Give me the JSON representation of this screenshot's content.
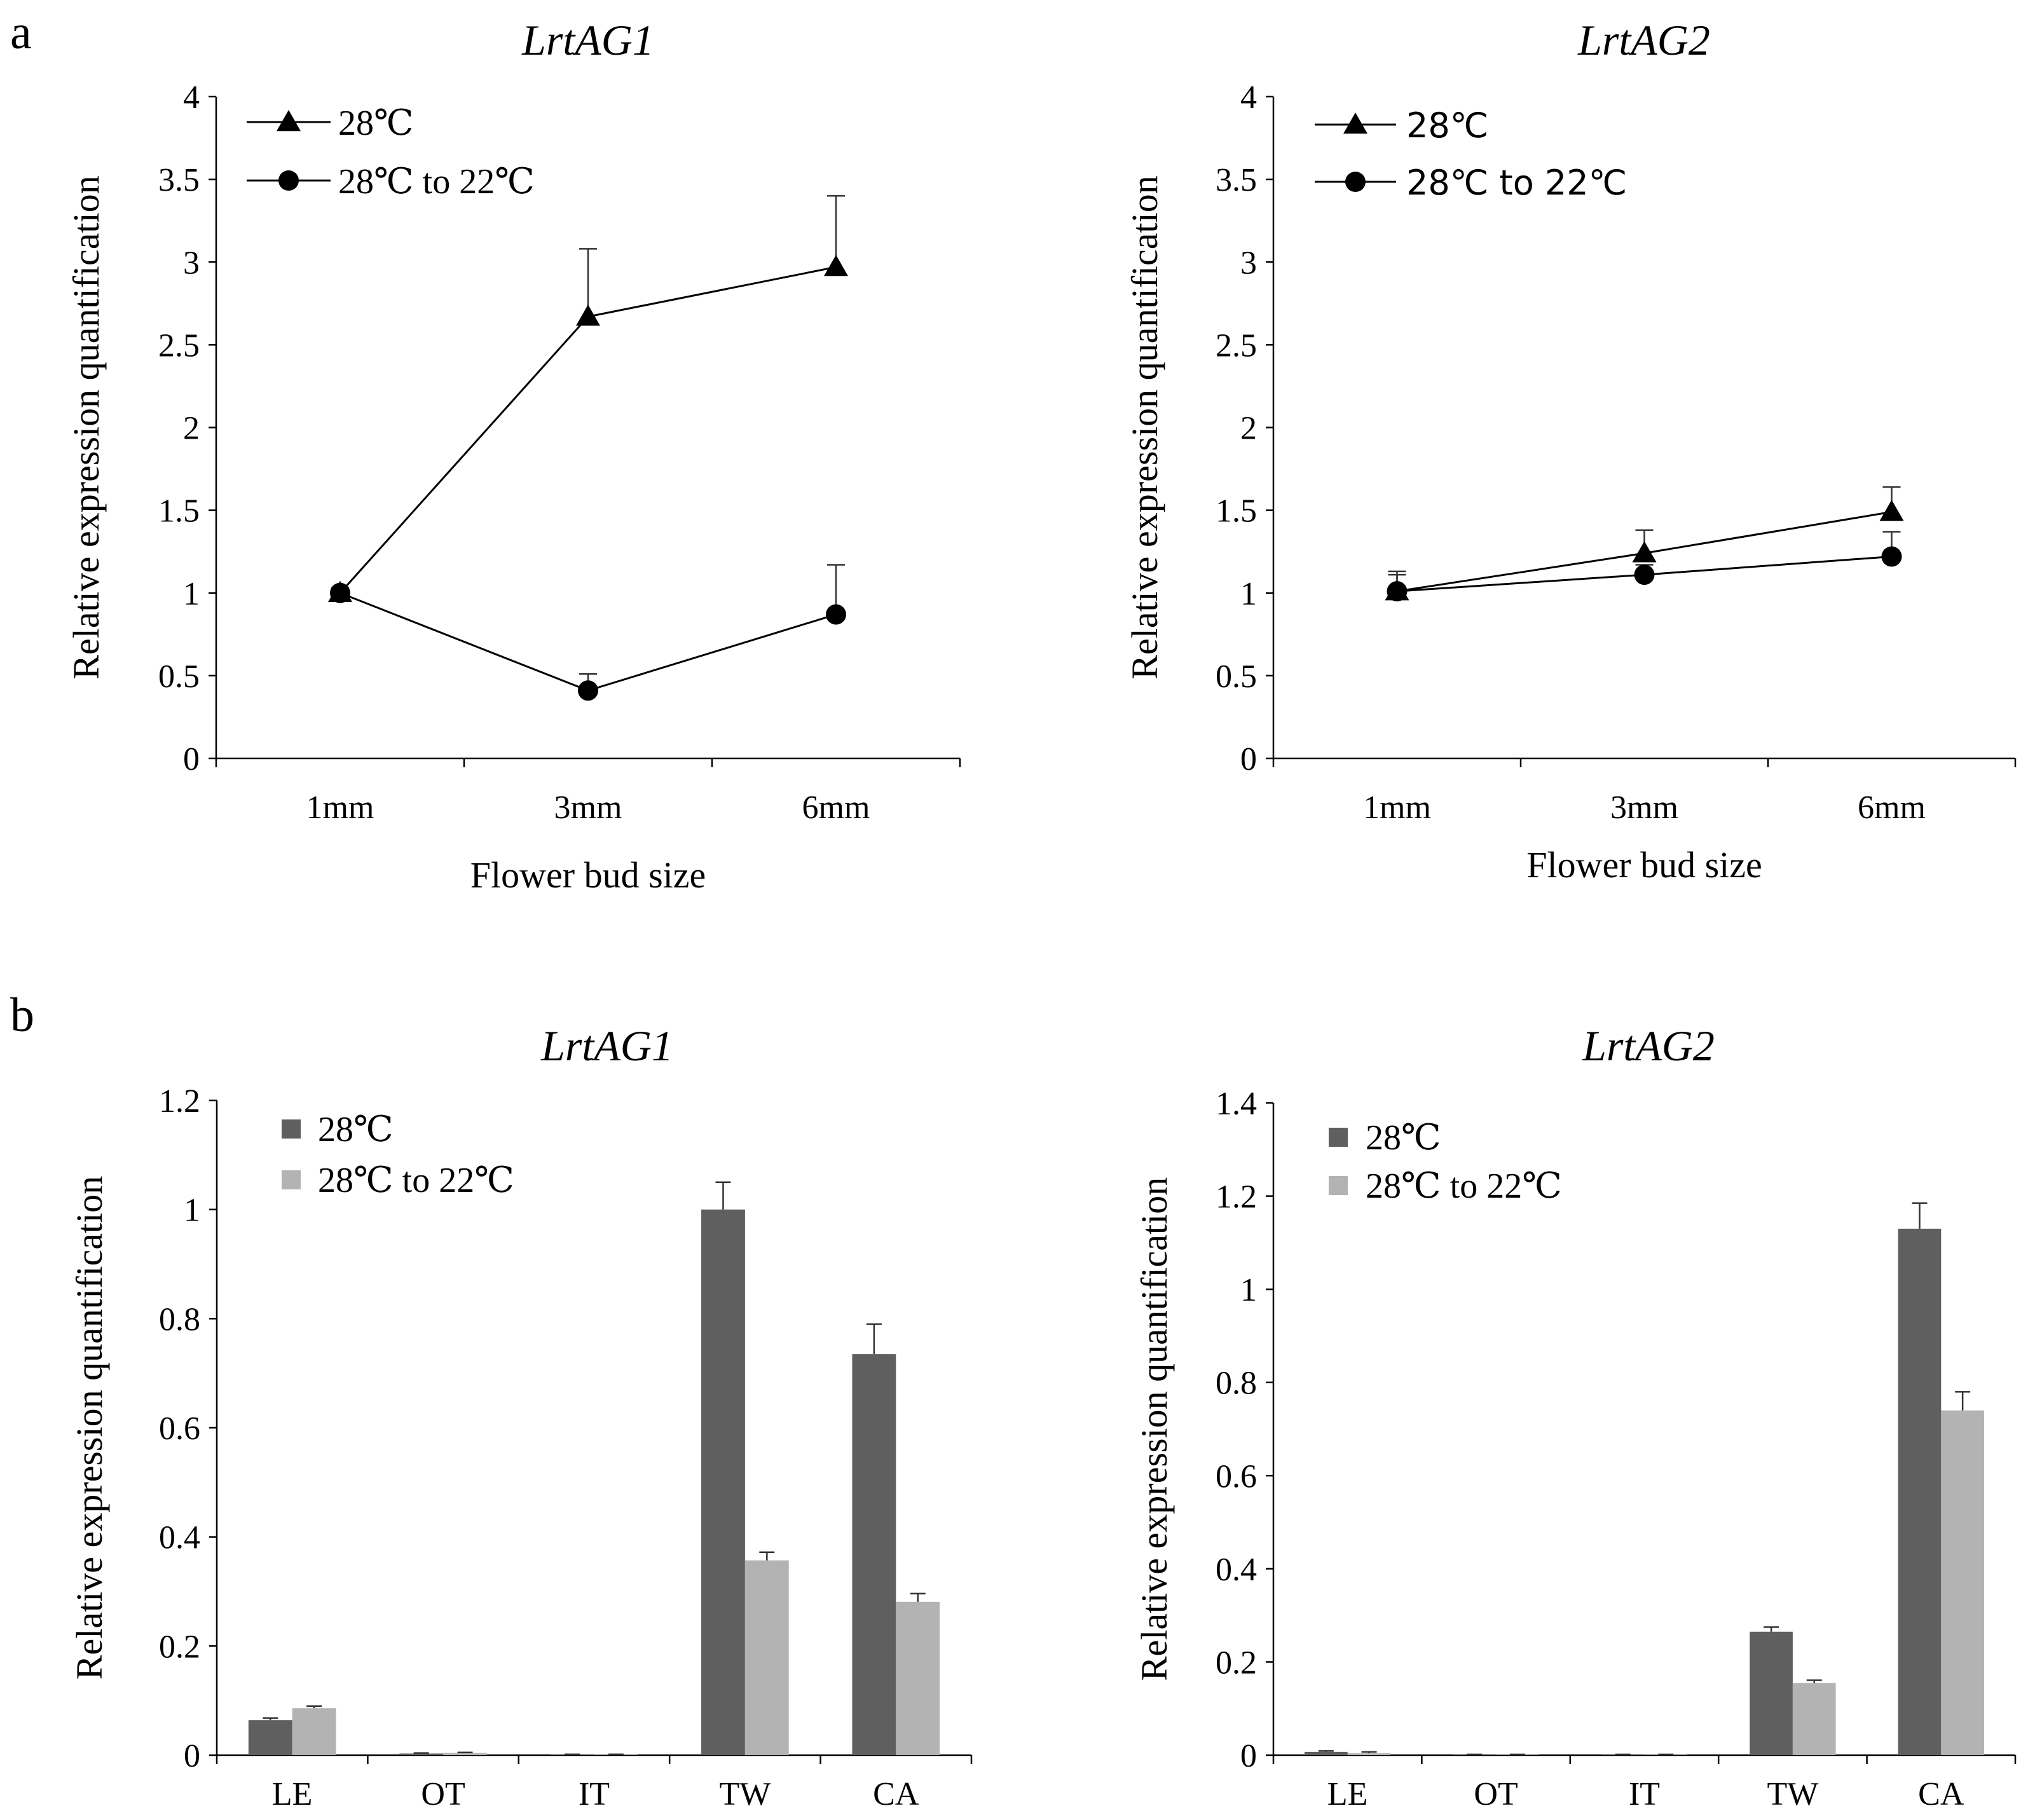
{
  "figure": {
    "panel_letters": [
      "a",
      "b"
    ]
  },
  "chart_data": [
    {
      "type": "line",
      "title": "LrtAG1",
      "xlabel": "Flower bud size",
      "ylabel": "Relative expression quantification",
      "categories": [
        "1mm",
        "3mm",
        "6mm"
      ],
      "ylim": [
        0,
        4
      ],
      "yticks": [
        0,
        0.5,
        1,
        1.5,
        2,
        2.5,
        3,
        3.5,
        4
      ],
      "ytick_labels": [
        "0",
        "0.5",
        "1",
        "1.5",
        "2",
        "2.5",
        "3",
        "3.5",
        "4"
      ],
      "legend_position": "top-left",
      "series": [
        {
          "name": "28℃",
          "marker": "triangle",
          "values": [
            1.0,
            2.67,
            2.97
          ],
          "errors": [
            0.03,
            0.41,
            0.43
          ]
        },
        {
          "name": "28℃ to 22℃",
          "marker": "circle",
          "values": [
            1.0,
            0.41,
            0.87
          ],
          "errors": [
            0.03,
            0.1,
            0.3
          ]
        }
      ]
    },
    {
      "type": "line",
      "title": "LrtAG2",
      "xlabel": "Flower bud size",
      "ylabel": "Relative expression quantification",
      "categories": [
        "1mm",
        "3mm",
        "6mm"
      ],
      "ylim": [
        0,
        4
      ],
      "yticks": [
        0,
        0.5,
        1,
        1.5,
        2,
        2.5,
        3,
        3.5,
        4
      ],
      "ytick_labels": [
        "0",
        "0.5",
        "1",
        "1.5",
        "2",
        "2.5",
        "3",
        "3.5",
        "4"
      ],
      "legend_position": "top-left",
      "series": [
        {
          "name": "28℃",
          "marker": "triangle",
          "values": [
            1.01,
            1.24,
            1.49
          ],
          "errors": [
            0.12,
            0.14,
            0.15
          ]
        },
        {
          "name": "28℃ to 22℃",
          "marker": "circle",
          "values": [
            1.01,
            1.11,
            1.22
          ],
          "errors": [
            0.1,
            0.06,
            0.15
          ]
        }
      ]
    },
    {
      "type": "bar",
      "title": "LrtAG1",
      "xlabel": "",
      "ylabel": "Relative expression quantification",
      "categories": [
        "LE",
        "OT",
        "IT",
        "TW",
        "CA"
      ],
      "ylim": [
        0,
        1.2
      ],
      "yticks": [
        0,
        0.2,
        0.4,
        0.6,
        0.8,
        1,
        1.2
      ],
      "ytick_labels": [
        "0",
        "0.2",
        "0.4",
        "0.6",
        "0.8",
        "1",
        "1.2"
      ],
      "legend_position": "top-left",
      "series": [
        {
          "name": "28℃",
          "color": "#5f5f5f",
          "values": [
            0.064,
            0.003,
            0.001,
            1.0,
            0.735
          ],
          "errors": [
            0.004,
            0.001,
            0.0005,
            0.05,
            0.055
          ]
        },
        {
          "name": "28℃ to 22℃",
          "color": "#b3b3b3",
          "values": [
            0.086,
            0.004,
            0.001,
            0.357,
            0.281
          ],
          "errors": [
            0.004,
            0.001,
            0.0005,
            0.015,
            0.015
          ]
        }
      ]
    },
    {
      "type": "bar",
      "title": "LrtAG2",
      "xlabel": "",
      "ylabel": "Relative expression quantification",
      "categories": [
        "LE",
        "OT",
        "IT",
        "TW",
        "CA"
      ],
      "ylim": [
        0,
        1.4
      ],
      "yticks": [
        0,
        0.2,
        0.4,
        0.6,
        0.8,
        1,
        1.2,
        1.4
      ],
      "ytick_labels": [
        "0",
        "0.2",
        "0.4",
        "0.6",
        "0.8",
        "1",
        "1.2",
        "1.4"
      ],
      "legend_position": "top-left",
      "series": [
        {
          "name": "28℃",
          "color": "#5f5f5f",
          "values": [
            0.007,
            0.001,
            0.001,
            0.265,
            1.13
          ],
          "errors": [
            0.002,
            0.0005,
            0.0005,
            0.01,
            0.055
          ]
        },
        {
          "name": "28℃ to 22℃",
          "color": "#b3b3b3",
          "values": [
            0.004,
            0.001,
            0.001,
            0.155,
            0.74
          ],
          "errors": [
            0.003,
            0.0005,
            0.0005,
            0.006,
            0.04
          ]
        }
      ]
    }
  ]
}
